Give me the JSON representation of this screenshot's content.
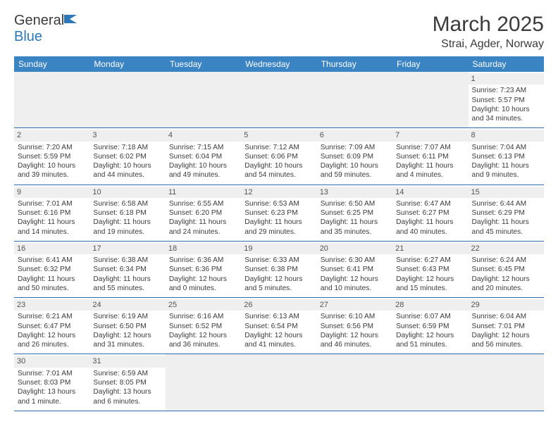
{
  "logo": {
    "text1": "General",
    "text2": "Blue"
  },
  "title": "March 2025",
  "location": "Strai, Agder, Norway",
  "weekday_labels": [
    "Sunday",
    "Monday",
    "Tuesday",
    "Wednesday",
    "Thursday",
    "Friday",
    "Saturday"
  ],
  "colors": {
    "header_bg": "#3b84c4",
    "header_text": "#ffffff",
    "rule": "#2b6aa8",
    "daynum_bg": "#efefef",
    "text": "#3b3b3b",
    "logo_blue": "#2b77b8"
  },
  "weeks": [
    [
      {
        "day": "",
        "sunrise": "",
        "sunset": "",
        "daylight": ""
      },
      {
        "day": "",
        "sunrise": "",
        "sunset": "",
        "daylight": ""
      },
      {
        "day": "",
        "sunrise": "",
        "sunset": "",
        "daylight": ""
      },
      {
        "day": "",
        "sunrise": "",
        "sunset": "",
        "daylight": ""
      },
      {
        "day": "",
        "sunrise": "",
        "sunset": "",
        "daylight": ""
      },
      {
        "day": "",
        "sunrise": "",
        "sunset": "",
        "daylight": ""
      },
      {
        "day": "1",
        "sunrise": "Sunrise: 7:23 AM",
        "sunset": "Sunset: 5:57 PM",
        "daylight": "Daylight: 10 hours and 34 minutes."
      }
    ],
    [
      {
        "day": "2",
        "sunrise": "Sunrise: 7:20 AM",
        "sunset": "Sunset: 5:59 PM",
        "daylight": "Daylight: 10 hours and 39 minutes."
      },
      {
        "day": "3",
        "sunrise": "Sunrise: 7:18 AM",
        "sunset": "Sunset: 6:02 PM",
        "daylight": "Daylight: 10 hours and 44 minutes."
      },
      {
        "day": "4",
        "sunrise": "Sunrise: 7:15 AM",
        "sunset": "Sunset: 6:04 PM",
        "daylight": "Daylight: 10 hours and 49 minutes."
      },
      {
        "day": "5",
        "sunrise": "Sunrise: 7:12 AM",
        "sunset": "Sunset: 6:06 PM",
        "daylight": "Daylight: 10 hours and 54 minutes."
      },
      {
        "day": "6",
        "sunrise": "Sunrise: 7:09 AM",
        "sunset": "Sunset: 6:09 PM",
        "daylight": "Daylight: 10 hours and 59 minutes."
      },
      {
        "day": "7",
        "sunrise": "Sunrise: 7:07 AM",
        "sunset": "Sunset: 6:11 PM",
        "daylight": "Daylight: 11 hours and 4 minutes."
      },
      {
        "day": "8",
        "sunrise": "Sunrise: 7:04 AM",
        "sunset": "Sunset: 6:13 PM",
        "daylight": "Daylight: 11 hours and 9 minutes."
      }
    ],
    [
      {
        "day": "9",
        "sunrise": "Sunrise: 7:01 AM",
        "sunset": "Sunset: 6:16 PM",
        "daylight": "Daylight: 11 hours and 14 minutes."
      },
      {
        "day": "10",
        "sunrise": "Sunrise: 6:58 AM",
        "sunset": "Sunset: 6:18 PM",
        "daylight": "Daylight: 11 hours and 19 minutes."
      },
      {
        "day": "11",
        "sunrise": "Sunrise: 6:55 AM",
        "sunset": "Sunset: 6:20 PM",
        "daylight": "Daylight: 11 hours and 24 minutes."
      },
      {
        "day": "12",
        "sunrise": "Sunrise: 6:53 AM",
        "sunset": "Sunset: 6:23 PM",
        "daylight": "Daylight: 11 hours and 29 minutes."
      },
      {
        "day": "13",
        "sunrise": "Sunrise: 6:50 AM",
        "sunset": "Sunset: 6:25 PM",
        "daylight": "Daylight: 11 hours and 35 minutes."
      },
      {
        "day": "14",
        "sunrise": "Sunrise: 6:47 AM",
        "sunset": "Sunset: 6:27 PM",
        "daylight": "Daylight: 11 hours and 40 minutes."
      },
      {
        "day": "15",
        "sunrise": "Sunrise: 6:44 AM",
        "sunset": "Sunset: 6:29 PM",
        "daylight": "Daylight: 11 hours and 45 minutes."
      }
    ],
    [
      {
        "day": "16",
        "sunrise": "Sunrise: 6:41 AM",
        "sunset": "Sunset: 6:32 PM",
        "daylight": "Daylight: 11 hours and 50 minutes."
      },
      {
        "day": "17",
        "sunrise": "Sunrise: 6:38 AM",
        "sunset": "Sunset: 6:34 PM",
        "daylight": "Daylight: 11 hours and 55 minutes."
      },
      {
        "day": "18",
        "sunrise": "Sunrise: 6:36 AM",
        "sunset": "Sunset: 6:36 PM",
        "daylight": "Daylight: 12 hours and 0 minutes."
      },
      {
        "day": "19",
        "sunrise": "Sunrise: 6:33 AM",
        "sunset": "Sunset: 6:38 PM",
        "daylight": "Daylight: 12 hours and 5 minutes."
      },
      {
        "day": "20",
        "sunrise": "Sunrise: 6:30 AM",
        "sunset": "Sunset: 6:41 PM",
        "daylight": "Daylight: 12 hours and 10 minutes."
      },
      {
        "day": "21",
        "sunrise": "Sunrise: 6:27 AM",
        "sunset": "Sunset: 6:43 PM",
        "daylight": "Daylight: 12 hours and 15 minutes."
      },
      {
        "day": "22",
        "sunrise": "Sunrise: 6:24 AM",
        "sunset": "Sunset: 6:45 PM",
        "daylight": "Daylight: 12 hours and 20 minutes."
      }
    ],
    [
      {
        "day": "23",
        "sunrise": "Sunrise: 6:21 AM",
        "sunset": "Sunset: 6:47 PM",
        "daylight": "Daylight: 12 hours and 26 minutes."
      },
      {
        "day": "24",
        "sunrise": "Sunrise: 6:19 AM",
        "sunset": "Sunset: 6:50 PM",
        "daylight": "Daylight: 12 hours and 31 minutes."
      },
      {
        "day": "25",
        "sunrise": "Sunrise: 6:16 AM",
        "sunset": "Sunset: 6:52 PM",
        "daylight": "Daylight: 12 hours and 36 minutes."
      },
      {
        "day": "26",
        "sunrise": "Sunrise: 6:13 AM",
        "sunset": "Sunset: 6:54 PM",
        "daylight": "Daylight: 12 hours and 41 minutes."
      },
      {
        "day": "27",
        "sunrise": "Sunrise: 6:10 AM",
        "sunset": "Sunset: 6:56 PM",
        "daylight": "Daylight: 12 hours and 46 minutes."
      },
      {
        "day": "28",
        "sunrise": "Sunrise: 6:07 AM",
        "sunset": "Sunset: 6:59 PM",
        "daylight": "Daylight: 12 hours and 51 minutes."
      },
      {
        "day": "29",
        "sunrise": "Sunrise: 6:04 AM",
        "sunset": "Sunset: 7:01 PM",
        "daylight": "Daylight: 12 hours and 56 minutes."
      }
    ],
    [
      {
        "day": "30",
        "sunrise": "Sunrise: 7:01 AM",
        "sunset": "Sunset: 8:03 PM",
        "daylight": "Daylight: 13 hours and 1 minute."
      },
      {
        "day": "31",
        "sunrise": "Sunrise: 6:59 AM",
        "sunset": "Sunset: 8:05 PM",
        "daylight": "Daylight: 13 hours and 6 minutes."
      },
      {
        "day": "",
        "sunrise": "",
        "sunset": "",
        "daylight": ""
      },
      {
        "day": "",
        "sunrise": "",
        "sunset": "",
        "daylight": ""
      },
      {
        "day": "",
        "sunrise": "",
        "sunset": "",
        "daylight": ""
      },
      {
        "day": "",
        "sunrise": "",
        "sunset": "",
        "daylight": ""
      },
      {
        "day": "",
        "sunrise": "",
        "sunset": "",
        "daylight": ""
      }
    ]
  ]
}
